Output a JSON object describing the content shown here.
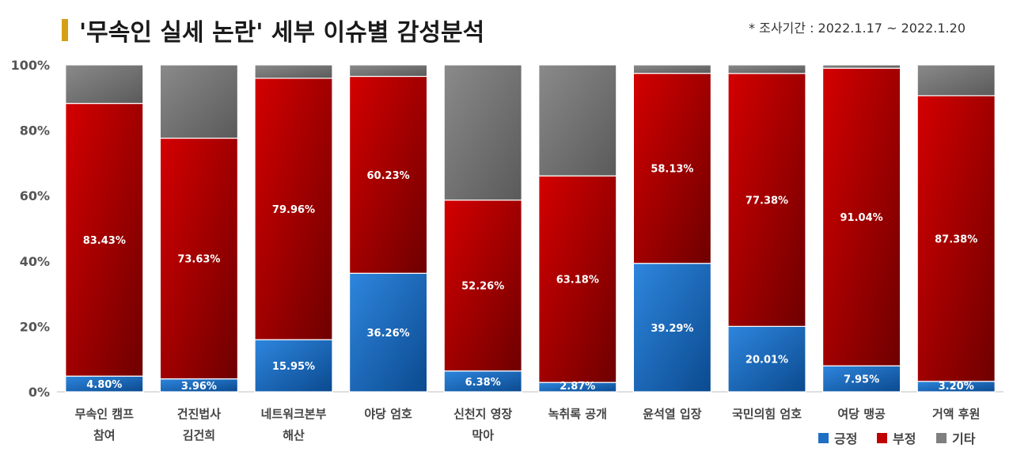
{
  "header": {
    "title": "'무속인 실세 논란' 세부 이슈별 감성분석",
    "period": "* 조사기간 : 2022.1.17 ~ 2022.1.20"
  },
  "chart_data": {
    "type": "bar",
    "stacked": "percent",
    "title": "'무속인 실세 논란' 세부 이슈별 감성분석",
    "xlabel": "",
    "ylabel": "",
    "ylim": [
      0,
      100
    ],
    "y_ticks": [
      "0%",
      "20%",
      "40%",
      "60%",
      "80%",
      "100%"
    ],
    "legend_position": "bottom-right",
    "categories": [
      [
        "무속인 캠프",
        "참여"
      ],
      [
        "건진법사",
        "김건희"
      ],
      [
        "네트워크본부",
        "해산"
      ],
      [
        "야당 엄호"
      ],
      [
        "신천지 영장",
        "막아"
      ],
      [
        "녹취록 공개"
      ],
      [
        "윤석열 입장"
      ],
      [
        "국민의힘 엄호"
      ],
      [
        "여당 맹공"
      ],
      [
        "거액 후원"
      ]
    ],
    "series": [
      {
        "name": "긍정",
        "color": "#1f6fc4",
        "values": [
          4.8,
          3.96,
          15.95,
          36.26,
          6.38,
          2.87,
          39.29,
          20.01,
          7.95,
          3.2
        ],
        "labels": [
          "4.80%",
          "3.96%",
          "15.95%",
          "36.26%",
          "6.38%",
          "2.87%",
          "39.29%",
          "20.01%",
          "7.95%",
          "3.20%"
        ]
      },
      {
        "name": "부정",
        "color": "#c00000",
        "values": [
          83.43,
          73.63,
          79.96,
          60.23,
          52.26,
          63.18,
          58.13,
          77.38,
          91.04,
          87.38
        ],
        "labels": [
          "83.43%",
          "73.63%",
          "79.96%",
          "60.23%",
          "52.26%",
          "63.18%",
          "58.13%",
          "77.38%",
          "91.04%",
          "87.38%"
        ]
      },
      {
        "name": "기타",
        "color": "#7f7f7f",
        "values": [
          11.77,
          22.41,
          4.09,
          3.51,
          41.36,
          33.95,
          2.58,
          2.61,
          1.01,
          9.42
        ],
        "labels": []
      }
    ]
  }
}
